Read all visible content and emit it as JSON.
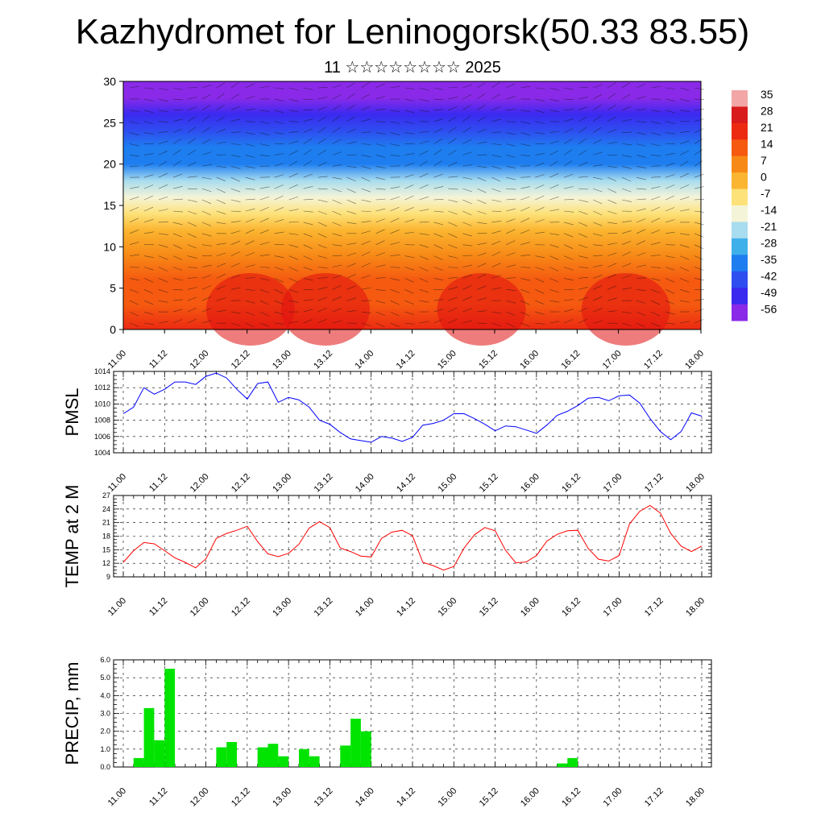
{
  "header": {
    "title": "Kazhydromet for Leninogorsk(50.33 83.55)",
    "subtitle": "11 ☆☆☆☆☆☆☆☆ 2025"
  },
  "time_labels": [
    "11.00",
    "11.12",
    "12.00",
    "12.12",
    "13.00",
    "13.12",
    "14.00",
    "14.12",
    "15.00",
    "15.12",
    "16.00",
    "16.12",
    "17.00",
    "17.12",
    "18.00"
  ],
  "colors": {
    "pmsl_line": "#0000ff",
    "temp_line": "#ff0000",
    "precip_bar": "#00e400",
    "grid": "#000000"
  },
  "chart_data": [
    {
      "type": "heatmap",
      "title": "",
      "ylabel": "",
      "ylim": [
        0,
        30
      ],
      "yticks": [
        0,
        5,
        10,
        15,
        20,
        25,
        30
      ],
      "x": [
        "11.00",
        "11.12",
        "12.00",
        "12.12",
        "13.00",
        "13.12",
        "14.00",
        "14.12",
        "15.00",
        "15.12",
        "16.00",
        "16.12",
        "17.00",
        "17.12",
        "18.00"
      ],
      "overlay": "wind barbs",
      "colorbar": {
        "labels": [
          "35",
          "28",
          "21",
          "14",
          "7",
          "0",
          "-7",
          "-14",
          "-21",
          "-28",
          "-35",
          "-42",
          "-49",
          "-56"
        ],
        "colors": [
          "#f2a6a6",
          "#d81b1b",
          "#ec2a12",
          "#f55a10",
          "#f78a17",
          "#fbb530",
          "#fde27a",
          "#f4f4d8",
          "#a8dcef",
          "#3fb0ea",
          "#1e7ef0",
          "#2e4ef0",
          "#3a2af0",
          "#8a2ae8"
        ]
      },
      "altitude_profile": [
        {
          "alt": 0,
          "temp": 19
        },
        {
          "alt": 3,
          "temp": 16
        },
        {
          "alt": 6,
          "temp": 12
        },
        {
          "alt": 9,
          "temp": 8
        },
        {
          "alt": 12,
          "temp": 2
        },
        {
          "alt": 14,
          "temp": -4
        },
        {
          "alt": 16,
          "temp": -12
        },
        {
          "alt": 18,
          "temp": -24
        },
        {
          "alt": 20,
          "temp": -32
        },
        {
          "alt": 22,
          "temp": -38
        },
        {
          "alt": 24,
          "temp": -44
        },
        {
          "alt": 26,
          "temp": -50
        },
        {
          "alt": 28,
          "temp": -54
        },
        {
          "alt": 30,
          "temp": -56
        }
      ]
    },
    {
      "type": "line",
      "ylabel": "PMSL",
      "ylim": [
        1004,
        1014
      ],
      "yticks": [
        1004,
        1006,
        1008,
        1010,
        1012,
        1014
      ],
      "x_start": 11.0,
      "x_step": 0.125,
      "series": [
        {
          "values": [
            1008.8,
            1009.6,
            1012.0,
            1011.2,
            1011.8,
            1012.7,
            1012.7,
            1012.4,
            1013.4,
            1013.8,
            1013.2,
            1011.8,
            1010.6,
            1012.5,
            1012.7,
            1010.2,
            1010.8,
            1010.5,
            1009.6,
            1008.0,
            1007.5,
            1006.5,
            1005.7,
            1005.5,
            1005.3,
            1006.0,
            1005.8,
            1005.4,
            1005.9,
            1007.4,
            1007.6,
            1008.0,
            1008.8,
            1008.8,
            1008.2,
            1007.5,
            1006.7,
            1007.3,
            1007.2,
            1006.8,
            1006.4,
            1007.4,
            1008.6,
            1009.1,
            1009.8,
            1010.7,
            1010.8,
            1010.4,
            1011.0,
            1011.1,
            1010.1,
            1008.2,
            1006.6,
            1005.6,
            1006.6,
            1008.9,
            1008.5
          ]
        }
      ]
    },
    {
      "type": "line",
      "ylabel": "TEMP at 2 M",
      "ylim": [
        9,
        27
      ],
      "yticks": [
        9,
        12,
        15,
        18,
        21,
        24,
        27
      ],
      "x_start": 11.0,
      "x_step": 0.125,
      "series": [
        {
          "values": [
            12.2,
            14.8,
            16.6,
            16.3,
            14.8,
            13.2,
            12.2,
            11.0,
            13.0,
            17.5,
            18.6,
            19.3,
            20.2,
            16.8,
            14.1,
            13.5,
            14.2,
            16.2,
            19.8,
            21.2,
            19.9,
            15.4,
            14.6,
            13.6,
            13.4,
            17.5,
            18.9,
            19.3,
            18.1,
            12.2,
            11.5,
            10.5,
            11.3,
            15.4,
            18.3,
            19.9,
            19.2,
            14.9,
            12.1,
            12.3,
            13.7,
            16.9,
            18.4,
            19.2,
            19.3,
            15.3,
            12.9,
            12.5,
            13.7,
            20.7,
            23.5,
            24.8,
            23.1,
            18.6,
            15.8,
            14.6,
            15.8
          ]
        }
      ]
    },
    {
      "type": "bar",
      "ylabel": "PRECIP, mm",
      "ylim": [
        0,
        6
      ],
      "yticks": [
        "0.0",
        "1.0",
        "2.0",
        "3.0",
        "4.0",
        "5.0",
        "6.0"
      ],
      "x_start": 11.0,
      "x_step": 0.125,
      "values": [
        0,
        0.5,
        3.3,
        1.5,
        5.5,
        0,
        0,
        0,
        0,
        1.1,
        1.4,
        0,
        0,
        1.1,
        1.3,
        0.6,
        0,
        1.0,
        0.6,
        0,
        0,
        1.2,
        2.7,
        2.0,
        0,
        0,
        0,
        0,
        0,
        0,
        0,
        0,
        0,
        0,
        0,
        0,
        0,
        0,
        0,
        0,
        0,
        0,
        0.2,
        0.5,
        0,
        0,
        0,
        0,
        0,
        0,
        0,
        0,
        0,
        0,
        0,
        0
      ]
    }
  ]
}
